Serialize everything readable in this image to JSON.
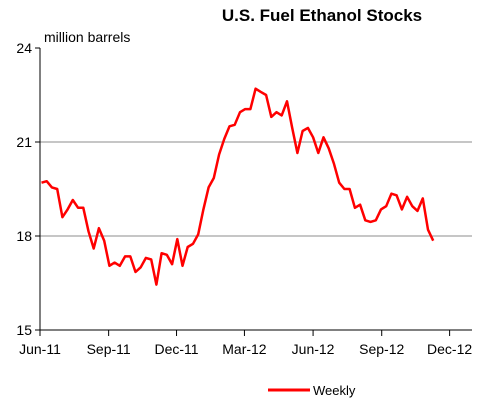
{
  "chart_data": {
    "type": "line",
    "title": "U.S. Fuel Ethanol Stocks",
    "unit_label": "million barrels",
    "ylim": [
      15,
      24
    ],
    "y_ticks": [
      "15",
      "18",
      "21",
      "24"
    ],
    "y_gridlines": [
      18,
      21
    ],
    "x_start": "2011-06-01",
    "x_end": "2012-12-31",
    "x_ticks": [
      {
        "label": "Jun-11",
        "date": "2011-06-01"
      },
      {
        "label": "Sep-11",
        "date": "2011-09-01"
      },
      {
        "label": "Dec-11",
        "date": "2011-12-01"
      },
      {
        "label": "Mar-12",
        "date": "2012-03-01"
      },
      {
        "label": "Jun-12",
        "date": "2012-06-01"
      },
      {
        "label": "Sep-12",
        "date": "2012-09-01"
      },
      {
        "label": "Dec-12",
        "date": "2012-12-01"
      }
    ],
    "legend_position": "bottom",
    "series": [
      {
        "name": "Weekly",
        "color": "#ff0000",
        "points": [
          [
            "2011-06-03",
            19.7
          ],
          [
            "2011-06-10",
            19.75
          ],
          [
            "2011-06-17",
            19.55
          ],
          [
            "2011-06-24",
            19.5
          ],
          [
            "2011-07-01",
            18.6
          ],
          [
            "2011-07-08",
            18.85
          ],
          [
            "2011-07-15",
            19.15
          ],
          [
            "2011-07-22",
            18.9
          ],
          [
            "2011-07-29",
            18.9
          ],
          [
            "2011-08-05",
            18.15
          ],
          [
            "2011-08-12",
            17.6
          ],
          [
            "2011-08-19",
            18.25
          ],
          [
            "2011-08-26",
            17.85
          ],
          [
            "2011-09-02",
            17.05
          ],
          [
            "2011-09-09",
            17.15
          ],
          [
            "2011-09-16",
            17.05
          ],
          [
            "2011-09-23",
            17.35
          ],
          [
            "2011-09-30",
            17.35
          ],
          [
            "2011-10-07",
            16.85
          ],
          [
            "2011-10-14",
            17.0
          ],
          [
            "2011-10-21",
            17.3
          ],
          [
            "2011-10-28",
            17.25
          ],
          [
            "2011-11-04",
            16.45
          ],
          [
            "2011-11-11",
            17.45
          ],
          [
            "2011-11-18",
            17.4
          ],
          [
            "2011-11-25",
            17.1
          ],
          [
            "2011-12-02",
            17.9
          ],
          [
            "2011-12-09",
            17.05
          ],
          [
            "2011-12-16",
            17.65
          ],
          [
            "2011-12-23",
            17.75
          ],
          [
            "2011-12-30",
            18.05
          ],
          [
            "2012-01-06",
            18.85
          ],
          [
            "2012-01-13",
            19.55
          ],
          [
            "2012-01-20",
            19.85
          ],
          [
            "2012-01-27",
            20.6
          ],
          [
            "2012-02-03",
            21.1
          ],
          [
            "2012-02-10",
            21.5
          ],
          [
            "2012-02-17",
            21.55
          ],
          [
            "2012-02-24",
            21.95
          ],
          [
            "2012-03-02",
            22.05
          ],
          [
            "2012-03-09",
            22.05
          ],
          [
            "2012-03-16",
            22.7
          ],
          [
            "2012-03-23",
            22.6
          ],
          [
            "2012-03-30",
            22.5
          ],
          [
            "2012-04-06",
            21.8
          ],
          [
            "2012-04-13",
            21.95
          ],
          [
            "2012-04-20",
            21.85
          ],
          [
            "2012-04-27",
            22.3
          ],
          [
            "2012-05-04",
            21.45
          ],
          [
            "2012-05-11",
            20.65
          ],
          [
            "2012-05-18",
            21.35
          ],
          [
            "2012-05-25",
            21.45
          ],
          [
            "2012-06-01",
            21.15
          ],
          [
            "2012-06-08",
            20.65
          ],
          [
            "2012-06-15",
            21.15
          ],
          [
            "2012-06-22",
            20.8
          ],
          [
            "2012-06-29",
            20.3
          ],
          [
            "2012-07-06",
            19.7
          ],
          [
            "2012-07-13",
            19.5
          ],
          [
            "2012-07-20",
            19.5
          ],
          [
            "2012-07-27",
            18.9
          ],
          [
            "2012-08-03",
            19.0
          ],
          [
            "2012-08-10",
            18.5
          ],
          [
            "2012-08-17",
            18.45
          ],
          [
            "2012-08-24",
            18.5
          ],
          [
            "2012-08-31",
            18.85
          ],
          [
            "2012-09-07",
            18.95
          ],
          [
            "2012-09-14",
            19.35
          ],
          [
            "2012-09-21",
            19.3
          ],
          [
            "2012-09-28",
            18.85
          ],
          [
            "2012-10-05",
            19.25
          ],
          [
            "2012-10-12",
            18.95
          ],
          [
            "2012-10-19",
            18.8
          ],
          [
            "2012-10-26",
            19.2
          ],
          [
            "2012-11-02",
            18.2
          ],
          [
            "2012-11-09",
            17.85
          ]
        ]
      }
    ]
  }
}
